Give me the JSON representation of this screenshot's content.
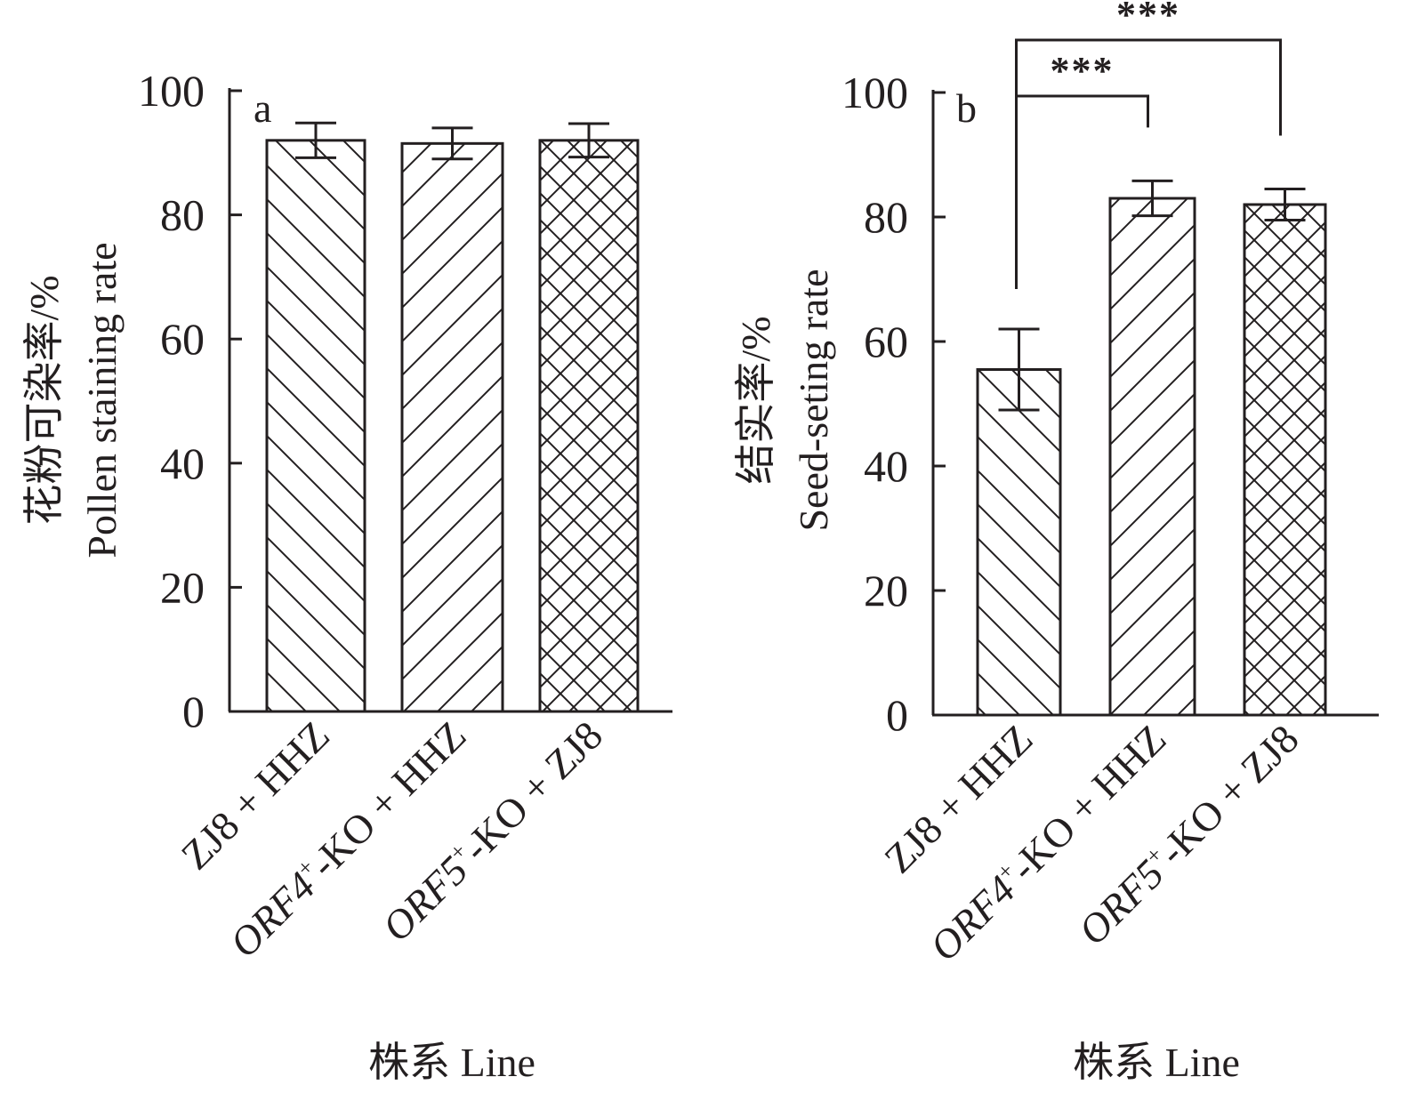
{
  "colors": {
    "ink": "#231f20",
    "background": "#ffffff"
  },
  "chart_data": [
    {
      "type": "bar",
      "panel_label": "a",
      "ylabel_cn": "花粉可染率/%",
      "ylabel_en": "Pollen staining rate",
      "xlabel": "株系 Line",
      "ylim": [
        0,
        100
      ],
      "yticks": [
        "0",
        "20",
        "40",
        "60",
        "80",
        "100"
      ],
      "categories": [
        {
          "pre": "ZJ8 + HHZ",
          "sup": "",
          "post": ""
        },
        {
          "pre": "ORF4",
          "sup": "+",
          "post": "-KO + HHZ"
        },
        {
          "pre": "ORF5",
          "sup": "+",
          "post": "-KO + ZJ8"
        }
      ],
      "values": [
        92,
        91.5,
        92
      ],
      "errors": [
        2.8,
        2.5,
        2.7
      ],
      "patterns": [
        "back-diagonal",
        "diagonal",
        "crosshatch"
      ]
    },
    {
      "type": "bar",
      "panel_label": "b",
      "ylabel_cn": "结实率/%",
      "ylabel_en": "Seed-seting rate",
      "xlabel": "株系 Line",
      "ylim": [
        0,
        100
      ],
      "yticks": [
        "0",
        "20",
        "40",
        "60",
        "80",
        "100"
      ],
      "categories": [
        {
          "pre": "ZJ8 + HHZ",
          "sup": "",
          "post": ""
        },
        {
          "pre": "ORF4",
          "sup": "+",
          "post": "-KO + HHZ"
        },
        {
          "pre": "ORF5",
          "sup": "+",
          "post": "-KO + ZJ8"
        }
      ],
      "values": [
        55.5,
        83,
        82
      ],
      "errors": [
        6.5,
        2.8,
        2.5
      ],
      "patterns": [
        "back-diagonal",
        "diagonal",
        "crosshatch"
      ],
      "significance": [
        {
          "from": 0,
          "to": 1,
          "label": "***"
        },
        {
          "from": 0,
          "to": 2,
          "label": "***"
        }
      ]
    }
  ]
}
